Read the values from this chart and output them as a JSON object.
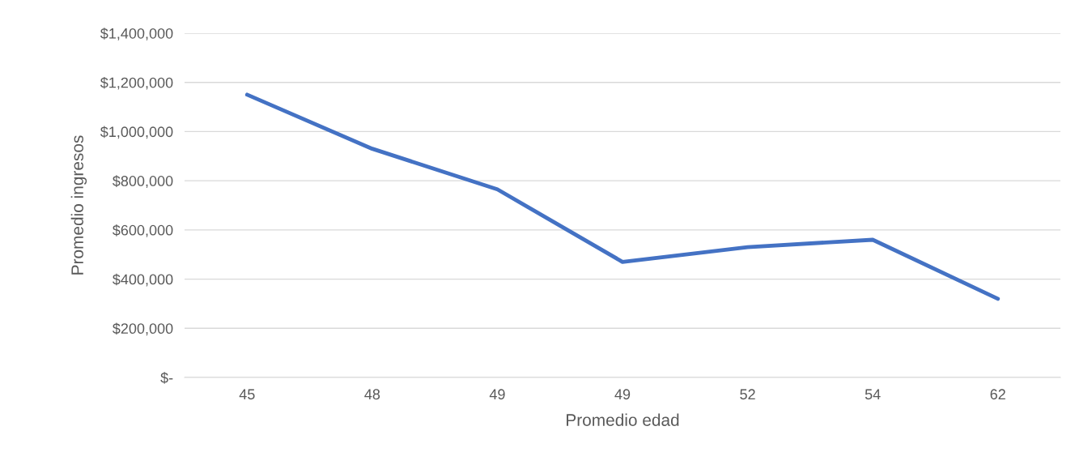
{
  "chart_data": {
    "type": "line",
    "xlabel": "Promedio edad",
    "ylabel": "Promedio ingresos",
    "categories": [
      "45",
      "48",
      "49",
      "49",
      "52",
      "54",
      "62"
    ],
    "series": [
      {
        "color": "#4472c4",
        "values": [
          1150000,
          930000,
          765000,
          470000,
          530000,
          560000,
          320000
        ]
      }
    ],
    "ylim": [
      0,
      1400000
    ],
    "yticks": [
      {
        "value": 0,
        "label": "$-"
      },
      {
        "value": 200000,
        "label": "$200,000"
      },
      {
        "value": 400000,
        "label": "$400,000"
      },
      {
        "value": 600000,
        "label": "$600,000"
      },
      {
        "value": 800000,
        "label": "$800,000"
      },
      {
        "value": 1000000,
        "label": "$1,000,000"
      },
      {
        "value": 1200000,
        "label": "$1,200,000"
      },
      {
        "value": 1400000,
        "label": "$1,400,000"
      }
    ],
    "grid": "y",
    "legend": false,
    "marker": "none",
    "line_style": "solid"
  }
}
